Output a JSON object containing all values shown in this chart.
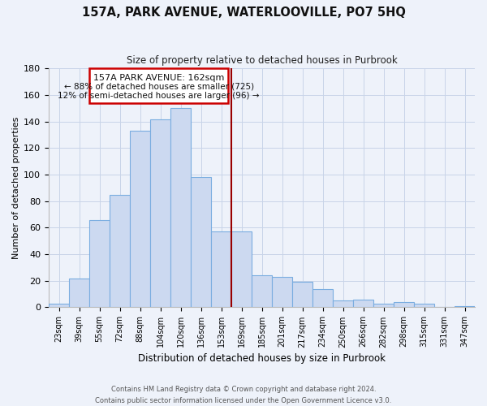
{
  "title": "157A, PARK AVENUE, WATERLOOVILLE, PO7 5HQ",
  "subtitle": "Size of property relative to detached houses in Purbrook",
  "xlabel": "Distribution of detached houses by size in Purbrook",
  "ylabel": "Number of detached properties",
  "bar_labels": [
    "23sqm",
    "39sqm",
    "55sqm",
    "72sqm",
    "88sqm",
    "104sqm",
    "120sqm",
    "136sqm",
    "153sqm",
    "169sqm",
    "185sqm",
    "201sqm",
    "217sqm",
    "234sqm",
    "250sqm",
    "266sqm",
    "282sqm",
    "298sqm",
    "315sqm",
    "331sqm",
    "347sqm"
  ],
  "bar_heights": [
    3,
    22,
    66,
    85,
    133,
    142,
    150,
    98,
    57,
    57,
    24,
    23,
    19,
    14,
    5,
    6,
    3,
    4,
    3,
    0,
    1
  ],
  "bar_color": "#ccd9f0",
  "bar_edge_color": "#7aade0",
  "vline_x": 8.5,
  "vline_color": "#990000",
  "annotation_title": "157A PARK AVENUE: 162sqm",
  "annotation_line1": "← 88% of detached houses are smaller (725)",
  "annotation_line2": "12% of semi-detached houses are larger (96) →",
  "annotation_box_color": "#ffffff",
  "annotation_box_edge_color": "#cc0000",
  "ylim": [
    0,
    180
  ],
  "yticks": [
    0,
    20,
    40,
    60,
    80,
    100,
    120,
    140,
    160,
    180
  ],
  "footer_line1": "Contains HM Land Registry data © Crown copyright and database right 2024.",
  "footer_line2": "Contains public sector information licensed under the Open Government Licence v3.0.",
  "bg_color": "#eef2fa",
  "plot_bg_color": "#eef2fa"
}
